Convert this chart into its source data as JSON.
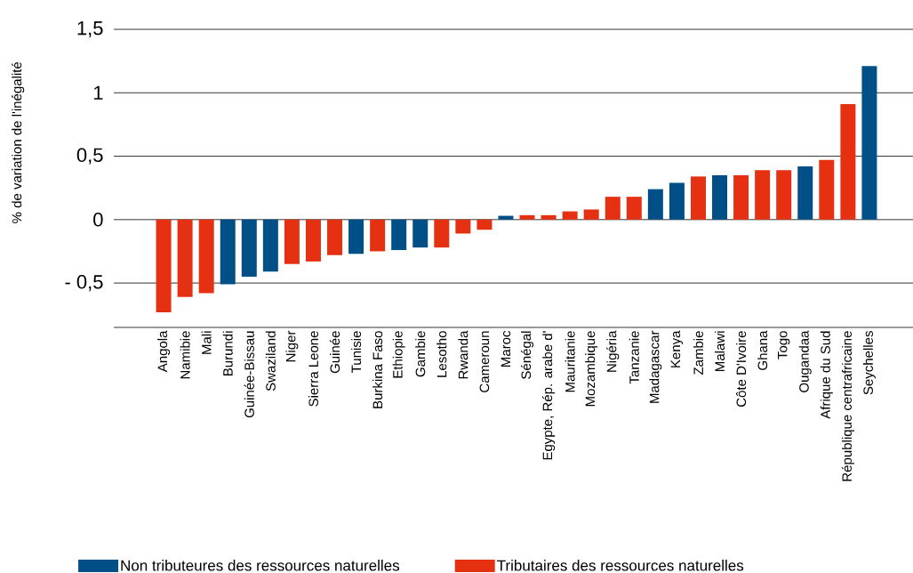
{
  "chart_data": {
    "type": "bar",
    "ylabel": "% de variation de l'inégalité",
    "categories": [
      "Angola",
      "Namibie",
      "Mali",
      "Burundi",
      "Guinée-Bissau",
      "Swaziland",
      "Niger",
      "Sierra Leone",
      "Guinée",
      "Tunisie",
      "Burkina Faso",
      "Ethiopie",
      "Gambie",
      "Lesotho",
      "Rwanda",
      "Cameroun",
      "Maroc",
      "Sénégal",
      "Egypte, Rép. arabe d'",
      "Mauritanie",
      "Mozambique",
      "Nigéria",
      "Tanzanie",
      "Madagascar",
      "Kenya",
      "Zambie",
      "Malawi",
      "Côte D'Ivoire",
      "Ghana",
      "Togo",
      "Ougandaa",
      "Afrique du Sud",
      "République centrafricaine",
      "Seychelles"
    ],
    "series": [
      {
        "name": "Non tributeures des ressources naturelles",
        "color": "#004f86",
        "values": [
          null,
          null,
          null,
          -0.51,
          -0.45,
          -0.41,
          null,
          null,
          null,
          -0.27,
          null,
          -0.24,
          -0.22,
          null,
          null,
          null,
          0.03,
          null,
          null,
          null,
          null,
          null,
          null,
          0.24,
          0.29,
          null,
          0.35,
          null,
          null,
          null,
          0.42,
          null,
          null,
          1.21
        ]
      },
      {
        "name": "Tributaires des ressources naturelles",
        "color": "#e53011",
        "values": [
          -0.73,
          -0.61,
          -0.58,
          null,
          null,
          null,
          -0.35,
          -0.33,
          -0.28,
          null,
          -0.25,
          null,
          null,
          -0.22,
          -0.11,
          -0.08,
          null,
          0.035,
          0.035,
          0.065,
          0.08,
          0.18,
          0.18,
          null,
          null,
          0.34,
          null,
          0.35,
          0.39,
          0.39,
          null,
          0.47,
          0.91,
          null
        ]
      }
    ],
    "ylim": [
      -0.85,
      1.5
    ],
    "yticks": [
      {
        "value": -0.85,
        "label": null
      },
      {
        "value": -0.5,
        "label": "- 0,5"
      },
      0,
      {
        "value": 0.5,
        "label": "0,5"
      },
      1,
      {
        "value": 1.5,
        "label": "1,5"
      }
    ],
    "grid": "y",
    "legend": "bottom"
  }
}
